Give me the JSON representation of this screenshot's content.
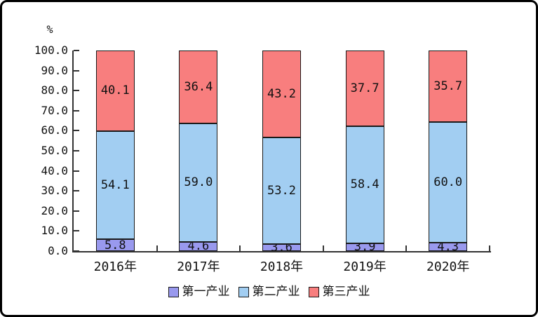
{
  "chart_data": {
    "type": "bar",
    "stacked": true,
    "title": "",
    "unit_label": "%",
    "categories": [
      "2016年",
      "2017年",
      "2018年",
      "2019年",
      "2020年"
    ],
    "series": [
      {
        "name": "第一产业",
        "color": "#9999EE",
        "values": [
          5.8,
          4.6,
          3.6,
          3.9,
          4.3
        ]
      },
      {
        "name": "第二产业",
        "color": "#A2CEF2",
        "values": [
          54.1,
          59.0,
          53.2,
          58.4,
          60.0
        ]
      },
      {
        "name": "第三产业",
        "color": "#F87E7E",
        "values": [
          40.1,
          36.4,
          43.2,
          37.7,
          35.7
        ]
      }
    ],
    "ylabel": "",
    "xlabel": "",
    "ylim": [
      0,
      100
    ],
    "ytick_step": 10,
    "ytick_labels": [
      "0.0",
      "10.0",
      "20.0",
      "30.0",
      "40.0",
      "50.0",
      "60.0",
      "70.0",
      "80.0",
      "90.0",
      "100.0"
    ],
    "grid": false,
    "legend_position": "bottom",
    "value_labels": "inside-center"
  },
  "colors": {
    "axis": "#333333",
    "bar_border": "#1a1a1a",
    "background": "#ffffff",
    "frame_border": "#000000"
  }
}
